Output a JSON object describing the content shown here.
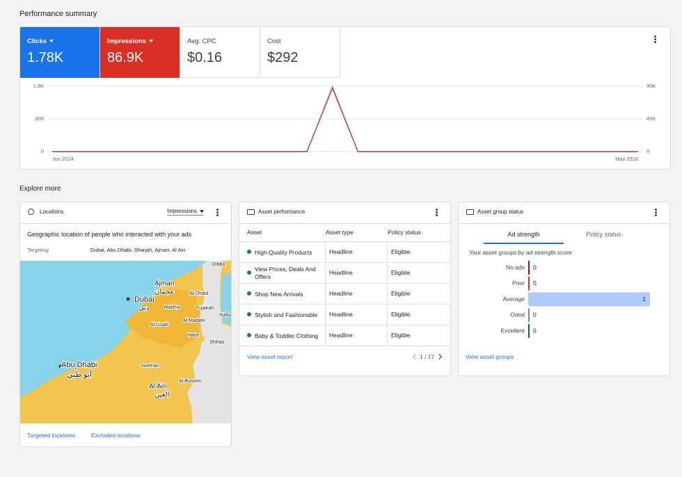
{
  "performance_summary": {
    "title": "Performance summary",
    "metrics": [
      {
        "label": "Avg. CPC",
        "value": "$0.16"
      },
      {
        "label": "Cost",
        "value": "$292"
      }
    ]
  },
  "chart_data": [
    {
      "type": "line",
      "categories": [
        "Jun 2024",
        null,
        null,
        null,
        null,
        null,
        null,
        null,
        null,
        null,
        null,
        null,
        null,
        null,
        null,
        null,
        null,
        null,
        null,
        null,
        null,
        null,
        null,
        "May 2026"
      ],
      "series": [
        {
          "name": "Clicks",
          "total": "1.78K",
          "color": "#1a73e8",
          "values": [
            0,
            0,
            0,
            0,
            0,
            0,
            0,
            0,
            0,
            0,
            0,
            1780,
            0,
            0,
            0,
            0,
            0,
            0,
            0,
            0,
            0,
            0,
            0,
            0
          ]
        },
        {
          "name": "Impressions",
          "total": "86.9K",
          "color": "#d93025",
          "axis": "y2",
          "values": [
            0,
            0,
            0,
            0,
            0,
            0,
            0,
            0,
            0,
            0,
            0,
            86900,
            0,
            0,
            0,
            0,
            0,
            0,
            0,
            0,
            0,
            0,
            0,
            0
          ]
        }
      ],
      "ylim": [
        0,
        1800
      ],
      "yticks": [
        0,
        900,
        {
          "value": 1800,
          "label": "1.8K"
        }
      ],
      "y2lim": [
        0,
        90000
      ],
      "y2ticks": [
        0,
        {
          "value": 45000,
          "label": "45K"
        },
        {
          "value": 90000,
          "label": "90K"
        }
      ],
      "grid": true
    },
    {
      "type": "bar",
      "orientation": "horizontal",
      "title": "Your asset groups by ad strength score",
      "categories": [
        "No ads",
        "Poor",
        "Average",
        "Good",
        "Excellent"
      ],
      "values": [
        0,
        0,
        1,
        0,
        0
      ],
      "colors": [
        "#a50e0e",
        "#d93025",
        "#aecbfa",
        "#80868b",
        "#174ea6"
      ]
    }
  ],
  "explore_more": {
    "title": "Explore more"
  },
  "locations": {
    "title": "Locations",
    "metric": "Impressions",
    "heading": "Geographic location of people who interacted with your ads",
    "targeting_label": "Targeting",
    "targeting_value": "Dubai, Abu Dhabi, Sharjah, Ajman, Al Ain",
    "map_labels": [
      "Dibba",
      "Ajman",
      "عجمان",
      "Al Dhaid",
      "Dubai",
      "دبي",
      "Maleha",
      "Fujairah",
      "Kalba",
      "Al Madam",
      "Al Lisaili",
      "Hatta",
      "Shihas",
      "Abu Dhabi",
      "أبو ظبي",
      "Sweihan",
      "Al Buraimi",
      "Al Ain",
      "العين"
    ],
    "links": [
      "Targeted locations",
      "Excluded locations"
    ]
  },
  "asset_performance": {
    "title": "Asset performance",
    "columns": [
      "Asset",
      "Asset type",
      "Policy status"
    ],
    "rows": [
      [
        "High-Quality Products",
        "Headline",
        "Eligible"
      ],
      [
        "View Prices, Deals And Offers",
        "Headline",
        "Eligible"
      ],
      [
        "Shop New Arrivals",
        "Headline",
        "Eligible"
      ],
      [
        "Stylish and Fashionable",
        "Headline",
        "Eligible"
      ],
      [
        "Baby & Toddler Clothing",
        "Headline",
        "Eligible"
      ]
    ],
    "link": "View asset report",
    "pagination": "1 / 17"
  },
  "asset_group_status": {
    "title": "Asset group status",
    "tabs": [
      "Ad strength",
      "Policy status"
    ],
    "link": "View asset groups"
  }
}
